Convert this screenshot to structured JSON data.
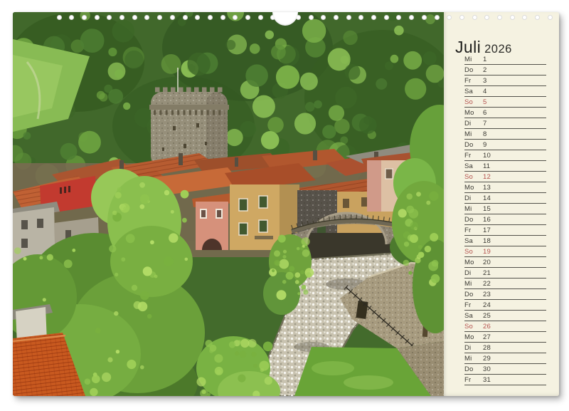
{
  "document": {
    "type": "wall-calendar-month-page",
    "month_title": "Juli",
    "year": "2026"
  },
  "colors": {
    "panel_bg": "#f5f2e1",
    "title": "#1d1d1b",
    "weekday": "#3a3933",
    "rule": "#52514a",
    "sunday": "#b4534f"
  },
  "binding": {
    "holes": 40,
    "hanger_cutout": true
  },
  "photo": {
    "description": "Italian hillside village with round medieval stone tower, terracotta rooftops, colorful facades, an old arched stone bridge over a rocky river and dense green woods"
  },
  "calendar": {
    "days": [
      {
        "weekday": "Mi",
        "day": "1"
      },
      {
        "weekday": "Do",
        "day": "2"
      },
      {
        "weekday": "Fr",
        "day": "3"
      },
      {
        "weekday": "Sa",
        "day": "4"
      },
      {
        "weekday": "So",
        "day": "5",
        "sunday": true
      },
      {
        "weekday": "Mo",
        "day": "6"
      },
      {
        "weekday": "Di",
        "day": "7"
      },
      {
        "weekday": "Mi",
        "day": "8"
      },
      {
        "weekday": "Do",
        "day": "9"
      },
      {
        "weekday": "Fr",
        "day": "10"
      },
      {
        "weekday": "Sa",
        "day": "11"
      },
      {
        "weekday": "So",
        "day": "12",
        "sunday": true
      },
      {
        "weekday": "Mo",
        "day": "13"
      },
      {
        "weekday": "Di",
        "day": "14"
      },
      {
        "weekday": "Mi",
        "day": "15"
      },
      {
        "weekday": "Do",
        "day": "16"
      },
      {
        "weekday": "Fr",
        "day": "17"
      },
      {
        "weekday": "Sa",
        "day": "18"
      },
      {
        "weekday": "So",
        "day": "19",
        "sunday": true
      },
      {
        "weekday": "Mo",
        "day": "20"
      },
      {
        "weekday": "Di",
        "day": "21"
      },
      {
        "weekday": "Mi",
        "day": "22"
      },
      {
        "weekday": "Do",
        "day": "23"
      },
      {
        "weekday": "Fr",
        "day": "24"
      },
      {
        "weekday": "Sa",
        "day": "25"
      },
      {
        "weekday": "So",
        "day": "26",
        "sunday": true
      },
      {
        "weekday": "Mo",
        "day": "27"
      },
      {
        "weekday": "Di",
        "day": "28"
      },
      {
        "weekday": "Mi",
        "day": "29"
      },
      {
        "weekday": "Do",
        "day": "30"
      },
      {
        "weekday": "Fr",
        "day": "31"
      }
    ]
  }
}
